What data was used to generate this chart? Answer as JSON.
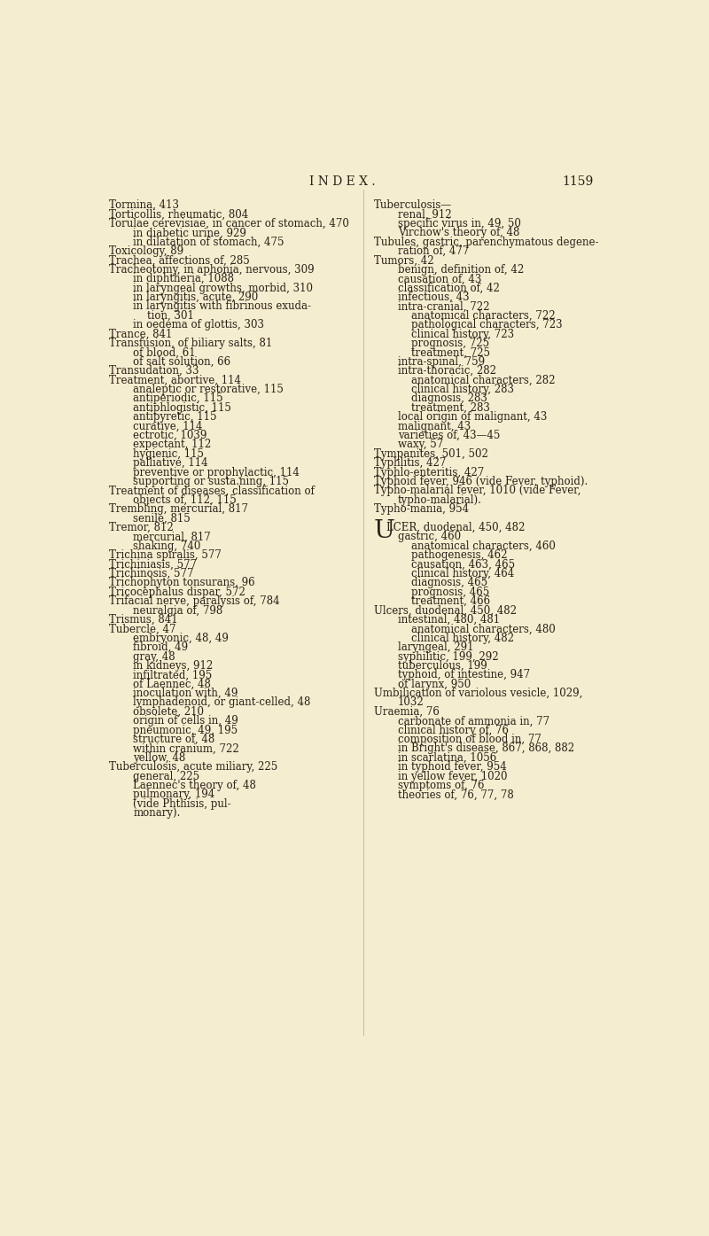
{
  "bg_color": "#f5edcf",
  "text_color": "#2a2018",
  "title": "I N D E X .",
  "page_num": "1159",
  "title_fontsize": 10,
  "body_fontsize": 8.5,
  "left_col": [
    [
      "Tormina, 413",
      0
    ],
    [
      "Torticollis, rheumatic, 804",
      0
    ],
    [
      "Torulae cerevisiae, in cancer of stomach, 470",
      0
    ],
    [
      "in diabetic urine, 929",
      1
    ],
    [
      "in dilatation of stomach, 475",
      1
    ],
    [
      "Toxicology, 89",
      0
    ],
    [
      "Trachea, affections of, 285",
      0
    ],
    [
      "Tracheotomy, in aphonia, nervous, 309",
      0
    ],
    [
      "in diphtheria, 1088",
      1
    ],
    [
      "in laryngeal growths, morbid, 310",
      1
    ],
    [
      "in laryngitis, acute, 290",
      1
    ],
    [
      "in laryngitis with fibrinous exuda-",
      1
    ],
    [
      "tion, 301",
      2
    ],
    [
      "in oedema of glottis, 303",
      1
    ],
    [
      "Trance, 841",
      0
    ],
    [
      "Transfusion, of biliary salts, 81",
      0
    ],
    [
      "of blood, 61",
      1
    ],
    [
      "of salt solution, 66",
      1
    ],
    [
      "Transudation, 33",
      0
    ],
    [
      "Treatment, abortive, 114",
      0
    ],
    [
      "analeptic or restorative, 115",
      1
    ],
    [
      "antiperiodic, 115",
      1
    ],
    [
      "antiphlogistic, 115",
      1
    ],
    [
      "antipyretic, 115",
      1
    ],
    [
      "curative, 114",
      1
    ],
    [
      "ectrotic, 1039",
      1
    ],
    [
      "expectant, 112",
      1
    ],
    [
      "hygienic, 115",
      1
    ],
    [
      "palliative, 114",
      1
    ],
    [
      "preventive or prophylactic, 114",
      1
    ],
    [
      "supporting or susta.ning, 115",
      1
    ],
    [
      "Treatment of diseases, classification of",
      0
    ],
    [
      "objects of, 112, 115",
      1
    ],
    [
      "Trembling, mercurial, 817",
      0
    ],
    [
      "senile, 815",
      1
    ],
    [
      "Tremor, 812",
      0
    ],
    [
      "mercurial, 817",
      1
    ],
    [
      "shaking, 740",
      1
    ],
    [
      "Trichina spiralis, 577",
      0
    ],
    [
      "Trichiniasis, 577",
      0
    ],
    [
      "Trichinosis, 577",
      0
    ],
    [
      "Trichophyton tonsurans, 96",
      0
    ],
    [
      "Tricocephalus dispar, 572",
      0
    ],
    [
      "Trifacial nerve, paralysis of, 784",
      0
    ],
    [
      "neuralgia of, 798",
      1
    ],
    [
      "Trismus, 841",
      0
    ],
    [
      "Tubercle, 47",
      0
    ],
    [
      "embryonic, 48, 49",
      1
    ],
    [
      "fibroid, 49",
      1
    ],
    [
      "gray, 48",
      1
    ],
    [
      "in kidneys, 912",
      1
    ],
    [
      "infiltrated, 195",
      1
    ],
    [
      "of Laennec, 48",
      1
    ],
    [
      "inoculation with, 49",
      1
    ],
    [
      "lymphadenoid, or giant-celled, 48",
      1
    ],
    [
      "obsolete, 210",
      1
    ],
    [
      "origin of cells in, 49",
      1
    ],
    [
      "pneumonic, 49, 195",
      1
    ],
    [
      "structure of, 48",
      1
    ],
    [
      "within cranium, 722",
      1
    ],
    [
      "yellow, 48",
      1
    ],
    [
      "Tuberculosis, acute miliary, 225",
      0
    ],
    [
      "general, 225",
      1
    ],
    [
      "Laennec's theory of, 48",
      1
    ],
    [
      "pulmonary, 194",
      1
    ],
    [
      "(vide Phthisis, pul-",
      1
    ],
    [
      "monary).",
      1
    ]
  ],
  "right_col": [
    [
      "Tuberculosis—",
      0
    ],
    [
      "renal, 912",
      1
    ],
    [
      "specific virus in, 49, 50",
      1
    ],
    [
      "Virchow's theory of, 48",
      1
    ],
    [
      "Tubules, gastric, parenchymatous degene-",
      0
    ],
    [
      "ration of, 477",
      1
    ],
    [
      "Tumors, 42",
      0
    ],
    [
      "benign, definition of, 42",
      1
    ],
    [
      "causation of, 43",
      1
    ],
    [
      "classification of, 42",
      1
    ],
    [
      "infectious, 43",
      1
    ],
    [
      "intra-cranial, 722",
      1
    ],
    [
      "anatomical characters, 722",
      2
    ],
    [
      "pathological characters, 723",
      2
    ],
    [
      "clinical history, 723",
      2
    ],
    [
      "prognosis, 725",
      2
    ],
    [
      "treatment, 725",
      2
    ],
    [
      "intra-spinal, 759",
      1
    ],
    [
      "intra-thoracic, 282",
      1
    ],
    [
      "anatomical characters, 282",
      2
    ],
    [
      "clinical history, 283",
      2
    ],
    [
      "diagnosis, 283",
      2
    ],
    [
      "treatment, 283",
      2
    ],
    [
      "local origin of malignant, 43",
      1
    ],
    [
      "malignant, 43",
      1
    ],
    [
      "varieties of, 43—45",
      1
    ],
    [
      "waxy, 57",
      1
    ],
    [
      "Tympanites, 501, 502",
      0
    ],
    [
      "Typhlitis, 427",
      0
    ],
    [
      "Typhlo-enteritis, 427",
      0
    ],
    [
      "Typhoid fever, 946 (vide Fever, typhoid).",
      0
    ],
    [
      "Typho-malarial fever, 1010 (vide Fever,",
      0
    ],
    [
      "typho-malarial).",
      1
    ],
    [
      "Typho-mania, 954",
      0
    ],
    [
      "",
      0
    ],
    [
      "ULCER, duodenal, 450, 482",
      0
    ],
    [
      "gastric, 460",
      1
    ],
    [
      "anatomical characters, 460",
      2
    ],
    [
      "pathogenesis, 462",
      2
    ],
    [
      "causation, 463, 465",
      2
    ],
    [
      "clinical history, 464",
      2
    ],
    [
      "diagnosis, 465",
      2
    ],
    [
      "prognosis, 465",
      2
    ],
    [
      "treatment, 466",
      2
    ],
    [
      "Ulcers, duodenal, 450, 482",
      0
    ],
    [
      "intestinal, 480, 481",
      1
    ],
    [
      "anatomical characters, 480",
      2
    ],
    [
      "clinical history, 482",
      2
    ],
    [
      "laryngeal, 291",
      1
    ],
    [
      "syphilitic, 199, 292",
      1
    ],
    [
      "tuberculous, 199",
      1
    ],
    [
      "typhoid, of intestine, 947",
      1
    ],
    [
      "of larynx, 950",
      1
    ],
    [
      "Umbilication of variolous vesicle, 1029,",
      0
    ],
    [
      "1032",
      1
    ],
    [
      "Uraemia, 76",
      0
    ],
    [
      "carbonate of ammonia in, 77",
      1
    ],
    [
      "clinical history of, 76",
      1
    ],
    [
      "composition of blood in, 77",
      1
    ],
    [
      "in Bright's disease, 867, 868, 882",
      1
    ],
    [
      "in scarlatina, 1056",
      1
    ],
    [
      "in typhoid fever, 954",
      1
    ],
    [
      "in yellow fever, 1020",
      1
    ],
    [
      "symptoms of, 76",
      1
    ],
    [
      "theories of, 76, 77, 78",
      1
    ]
  ]
}
